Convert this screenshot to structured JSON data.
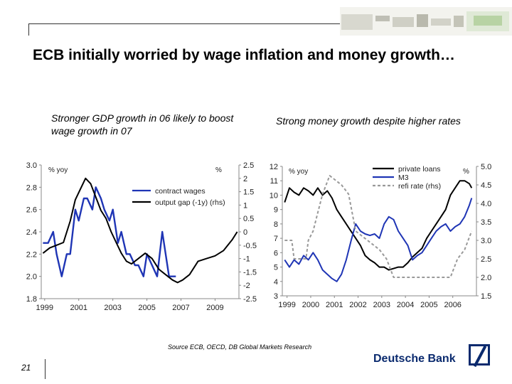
{
  "slide": {
    "title": "ECB initially worried by wage inflation and money growth…",
    "page_number": "21",
    "source": "Source ECB, OECD, DB Global Markets Research",
    "brand": "Deutsche Bank",
    "brand_color": "#0a2a6e"
  },
  "chart_data": [
    {
      "type": "line",
      "subtitle": "Stronger GDP growth in 06 likely to boost wage growth in 07",
      "left_axis_unit": "% yoy",
      "right_axis_unit": "%",
      "x_range": [
        1998.8,
        2010.4
      ],
      "x_ticks": [
        "1999",
        "2001",
        "2003",
        "2005",
        "2007",
        "2009"
      ],
      "y_left_range": [
        1.8,
        3.0
      ],
      "y_left_ticks": [
        "3.0",
        "2.8",
        "2.6",
        "2.4",
        "2.2",
        "2.0",
        "1.8"
      ],
      "y_right_range": [
        -2.5,
        2.5
      ],
      "y_right_ticks": [
        "2.5",
        "2",
        "1.5",
        "1",
        "0.5",
        "0",
        "-0.5",
        "-1",
        "-1.5",
        "-2",
        "-2.5"
      ],
      "legend": [
        "contract wages",
        "output gap (-1y) (rhs)"
      ],
      "legend_position": "top-center",
      "series": [
        {
          "name": "contract wages",
          "axis": "left",
          "color": "#1f35b5",
          "x": [
            1998.9,
            1999.2,
            1999.5,
            1999.7,
            2000.0,
            2000.3,
            2000.5,
            2000.8,
            2001.0,
            2001.3,
            2001.5,
            2001.8,
            2002.0,
            2002.3,
            2002.5,
            2002.8,
            2003.0,
            2003.3,
            2003.5,
            2003.8,
            2004.0,
            2004.3,
            2004.5,
            2004.8,
            2005.0,
            2005.3,
            2005.6,
            2005.9,
            2006.3,
            2006.7
          ],
          "y": [
            2.3,
            2.3,
            2.4,
            2.2,
            2.0,
            2.2,
            2.2,
            2.6,
            2.5,
            2.7,
            2.7,
            2.6,
            2.8,
            2.7,
            2.6,
            2.5,
            2.6,
            2.3,
            2.4,
            2.2,
            2.2,
            2.1,
            2.1,
            2.0,
            2.2,
            2.1,
            2.0,
            2.4,
            2.0,
            2.0
          ]
        },
        {
          "name": "output gap (-1y) (rhs)",
          "axis": "right",
          "color": "#000000",
          "x": [
            1998.9,
            1999.3,
            1999.7,
            2000.1,
            2000.5,
            2000.8,
            2001.1,
            2001.4,
            2001.7,
            2002.0,
            2002.3,
            2002.6,
            2002.9,
            2003.2,
            2003.5,
            2003.8,
            2004.1,
            2004.5,
            2004.9,
            2005.3,
            2005.7,
            2006.1,
            2006.5,
            2006.8,
            2007.1,
            2007.5,
            2008.0,
            2008.5,
            2009.0,
            2009.5,
            2010.0,
            2010.3
          ],
          "y": [
            -0.8,
            -0.6,
            -0.5,
            -0.4,
            0.4,
            1.2,
            1.6,
            2.0,
            1.8,
            1.3,
            0.8,
            0.5,
            0.0,
            -0.4,
            -0.8,
            -1.1,
            -1.2,
            -1.0,
            -0.8,
            -1.0,
            -1.4,
            -1.6,
            -1.8,
            -1.9,
            -1.8,
            -1.6,
            -1.1,
            -1.0,
            -0.9,
            -0.7,
            -0.3,
            0.0
          ]
        }
      ]
    },
    {
      "type": "line",
      "subtitle": "Strong money growth despite higher rates",
      "left_axis_unit": "% yoy",
      "right_axis_unit": "%",
      "x_range": [
        1998.8,
        2007.0
      ],
      "x_ticks": [
        "1999",
        "2000",
        "2001",
        "2002",
        "2003",
        "2004",
        "2005",
        "2006"
      ],
      "y_left_range": [
        3,
        12
      ],
      "y_left_ticks": [
        "12",
        "11",
        "10",
        "9",
        "8",
        "7",
        "6",
        "5",
        "4",
        "3"
      ],
      "y_right_range": [
        1.5,
        5.0
      ],
      "y_right_ticks": [
        "5.0",
        "4.5",
        "4.0",
        "3.5",
        "3.0",
        "2.5",
        "2.0",
        "1.5"
      ],
      "legend": [
        "private loans",
        "M3",
        "refi rate (rhs)"
      ],
      "legend_position": "top-right",
      "series": [
        {
          "name": "private loans",
          "axis": "left",
          "color": "#000000",
          "x": [
            1998.9,
            1999.1,
            1999.3,
            1999.5,
            1999.7,
            1999.9,
            2000.1,
            2000.3,
            2000.5,
            2000.7,
            2000.9,
            2001.1,
            2001.3,
            2001.5,
            2001.7,
            2001.9,
            2002.1,
            2002.3,
            2002.5,
            2002.7,
            2002.9,
            2003.1,
            2003.3,
            2003.5,
            2003.7,
            2003.9,
            2004.1,
            2004.3,
            2004.5,
            2004.7,
            2004.9,
            2005.1,
            2005.3,
            2005.5,
            2005.7,
            2005.9,
            2006.1,
            2006.3,
            2006.5,
            2006.7,
            2006.8
          ],
          "y": [
            9.5,
            10.5,
            10.2,
            10.0,
            10.5,
            10.3,
            10.0,
            10.5,
            10.0,
            10.3,
            9.8,
            9.0,
            8.5,
            8.0,
            7.5,
            7.0,
            6.5,
            5.8,
            5.5,
            5.3,
            5.0,
            5.0,
            4.8,
            4.9,
            5.0,
            5.0,
            5.3,
            5.7,
            6.0,
            6.3,
            7.0,
            7.5,
            8.0,
            8.5,
            9.0,
            10.0,
            10.5,
            11.0,
            11.0,
            10.8,
            10.5
          ]
        },
        {
          "name": "M3",
          "axis": "left",
          "color": "#1f35b5",
          "x": [
            1998.9,
            1999.1,
            1999.3,
            1999.5,
            1999.7,
            1999.9,
            2000.1,
            2000.3,
            2000.5,
            2000.7,
            2000.9,
            2001.1,
            2001.3,
            2001.5,
            2001.7,
            2001.9,
            2002.1,
            2002.3,
            2002.5,
            2002.7,
            2002.9,
            2003.1,
            2003.3,
            2003.5,
            2003.7,
            2003.9,
            2004.1,
            2004.3,
            2004.5,
            2004.7,
            2004.9,
            2005.1,
            2005.3,
            2005.5,
            2005.7,
            2005.9,
            2006.1,
            2006.3,
            2006.5,
            2006.7,
            2006.8
          ],
          "y": [
            5.5,
            5.0,
            5.5,
            5.2,
            5.8,
            5.5,
            6.0,
            5.5,
            4.8,
            4.5,
            4.2,
            4.0,
            4.5,
            5.5,
            6.8,
            8.0,
            7.5,
            7.3,
            7.2,
            7.3,
            7.0,
            8.0,
            8.5,
            8.3,
            7.5,
            7.0,
            6.5,
            5.5,
            5.8,
            6.0,
            6.5,
            7.0,
            7.5,
            7.8,
            8.0,
            7.5,
            7.8,
            8.0,
            8.5,
            9.3,
            9.8
          ]
        },
        {
          "name": "refi rate (rhs)",
          "axis": "right",
          "color": "#999999",
          "x": [
            1998.9,
            1999.2,
            1999.3,
            1999.8,
            1999.9,
            2000.1,
            2000.3,
            2000.5,
            2000.8,
            2001.3,
            2001.6,
            2001.9,
            2002.9,
            2003.2,
            2003.5,
            2005.9,
            2006.2,
            2006.5,
            2006.8
          ],
          "y": [
            3.0,
            3.0,
            2.5,
            2.5,
            3.0,
            3.25,
            3.75,
            4.25,
            4.75,
            4.5,
            4.25,
            3.25,
            2.75,
            2.5,
            2.0,
            2.0,
            2.5,
            2.75,
            3.25
          ]
        }
      ]
    }
  ]
}
